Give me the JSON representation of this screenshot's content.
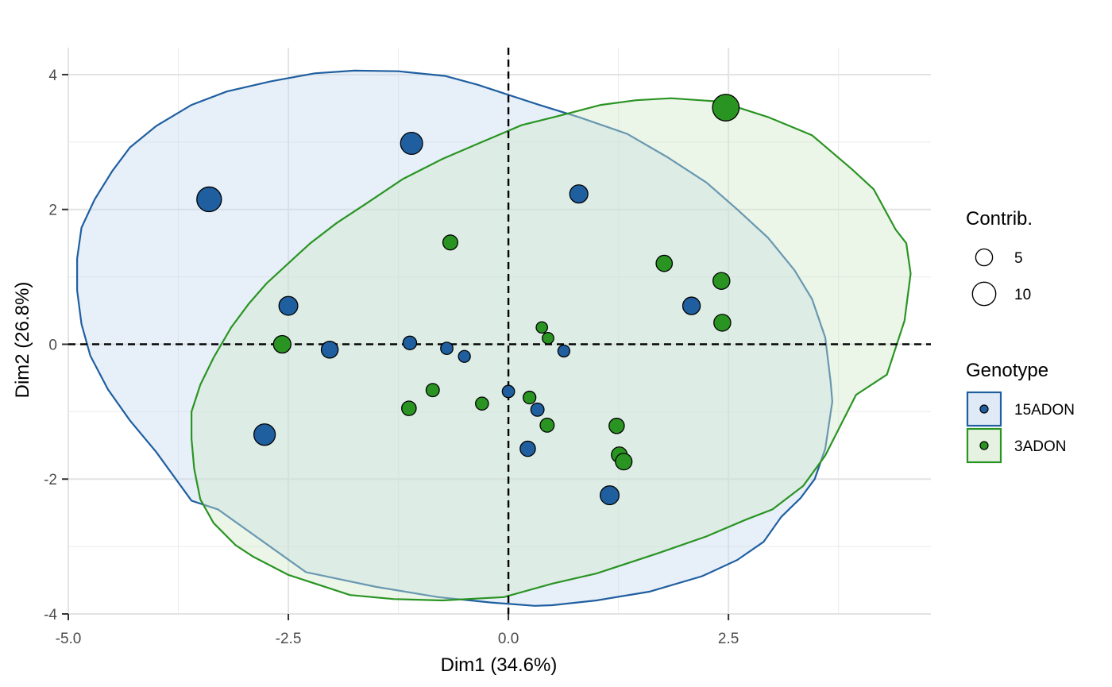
{
  "chart_data": {
    "type": "scatter",
    "title": "",
    "xlabel": "Dim1 (34.6%)",
    "ylabel": "Dim2 (26.8%)",
    "xlim": [
      -5.0,
      4.8
    ],
    "ylim": [
      -4.0,
      4.4
    ],
    "x_ticks": [
      -5.0,
      -2.5,
      0.0,
      2.5
    ],
    "x_tick_labels": [
      "-5.0",
      "-2.5",
      "0.0",
      "2.5"
    ],
    "y_ticks": [
      -4,
      -2,
      0,
      2,
      4
    ],
    "y_tick_labels": [
      "-4",
      "-2",
      "0",
      "2",
      "4"
    ],
    "grid": true,
    "reference_lines": {
      "x": 0,
      "y": 0,
      "style": "dashed"
    },
    "legend_position": "right",
    "size_legend": {
      "title": "Contrib.",
      "entries": [
        {
          "label": "5",
          "value": 5
        },
        {
          "label": "10",
          "value": 10
        }
      ]
    },
    "color_legend": {
      "title": "Genotype"
    },
    "series": [
      {
        "name": "15ADON",
        "color": "#1f5fa0",
        "fill": "#c6d8ee",
        "points": [
          {
            "x": -3.4,
            "y": 2.15,
            "contrib": 11.0
          },
          {
            "x": -1.1,
            "y": 2.98,
            "contrib": 9.0
          },
          {
            "x": 0.8,
            "y": 2.23,
            "contrib": 6.0
          },
          {
            "x": -2.5,
            "y": 0.57,
            "contrib": 6.5
          },
          {
            "x": -2.03,
            "y": -0.08,
            "contrib": 5.0
          },
          {
            "x": -1.12,
            "y": 0.02,
            "contrib": 2.5
          },
          {
            "x": -0.7,
            "y": -0.06,
            "contrib": 1.5
          },
          {
            "x": -0.5,
            "y": -0.18,
            "contrib": 1.2
          },
          {
            "x": 0.63,
            "y": -0.1,
            "contrib": 1.2
          },
          {
            "x": 0.0,
            "y": -0.7,
            "contrib": 1.5
          },
          {
            "x": 0.33,
            "y": -0.97,
            "contrib": 2.2
          },
          {
            "x": 0.22,
            "y": -1.55,
            "contrib": 3.8
          },
          {
            "x": 2.08,
            "y": 0.57,
            "contrib": 5.5
          },
          {
            "x": -2.77,
            "y": -1.34,
            "contrib": 8.5
          },
          {
            "x": 1.15,
            "y": -2.24,
            "contrib": 6.5
          }
        ],
        "ellipse": [
          [
            -4.9,
            1.27
          ],
          [
            -4.85,
            1.73
          ],
          [
            -4.7,
            2.15
          ],
          [
            -4.5,
            2.57
          ],
          [
            -4.3,
            2.92
          ],
          [
            -4.0,
            3.24
          ],
          [
            -3.6,
            3.55
          ],
          [
            -3.2,
            3.75
          ],
          [
            -2.7,
            3.9
          ],
          [
            -2.2,
            4.02
          ],
          [
            -1.75,
            4.06
          ],
          [
            -1.25,
            4.05
          ],
          [
            -0.72,
            3.98
          ],
          [
            -0.35,
            3.85
          ],
          [
            0.35,
            3.55
          ],
          [
            0.8,
            3.37
          ],
          [
            1.35,
            3.12
          ],
          [
            1.8,
            2.78
          ],
          [
            2.25,
            2.4
          ],
          [
            2.6,
            2.0
          ],
          [
            2.95,
            1.58
          ],
          [
            3.25,
            1.1
          ],
          [
            3.45,
            0.67
          ],
          [
            3.6,
            0.1
          ],
          [
            3.66,
            -0.55
          ],
          [
            3.68,
            -0.85
          ],
          [
            3.6,
            -1.55
          ],
          [
            3.48,
            -2.0
          ],
          [
            3.32,
            -2.28
          ],
          [
            3.1,
            -2.56
          ],
          [
            2.9,
            -2.93
          ],
          [
            2.6,
            -3.2
          ],
          [
            2.2,
            -3.44
          ],
          [
            1.6,
            -3.67
          ],
          [
            1.0,
            -3.8
          ],
          [
            0.5,
            -3.87
          ],
          [
            0.3,
            -3.88
          ],
          [
            -0.2,
            -3.83
          ],
          [
            -0.8,
            -3.75
          ],
          [
            -1.5,
            -3.6
          ],
          [
            -2.3,
            -3.38
          ],
          [
            -3.3,
            -2.45
          ],
          [
            -3.6,
            -2.32
          ],
          [
            -4.0,
            -1.6
          ],
          [
            -4.3,
            -1.13
          ],
          [
            -4.55,
            -0.67
          ],
          [
            -4.75,
            -0.17
          ],
          [
            -4.85,
            0.3
          ],
          [
            -4.9,
            0.8
          ]
        ]
      },
      {
        "name": "3ADON",
        "color": "#2a9423",
        "fill": "#cfe8c8",
        "points": [
          {
            "x": 2.47,
            "y": 3.51,
            "contrib": 12.5
          },
          {
            "x": -0.66,
            "y": 1.51,
            "contrib": 3.5
          },
          {
            "x": 1.77,
            "y": 1.2,
            "contrib": 4.5
          },
          {
            "x": 2.42,
            "y": 0.94,
            "contrib": 5.0
          },
          {
            "x": 2.43,
            "y": 0.32,
            "contrib": 5.0
          },
          {
            "x": -2.57,
            "y": 0.0,
            "contrib": 5.5
          },
          {
            "x": 0.38,
            "y": 0.25,
            "contrib": 0.8
          },
          {
            "x": 0.45,
            "y": 0.09,
            "contrib": 0.9
          },
          {
            "x": -0.86,
            "y": -0.68,
            "contrib": 2.2
          },
          {
            "x": -0.3,
            "y": -0.88,
            "contrib": 2.0
          },
          {
            "x": 0.24,
            "y": -0.79,
            "contrib": 1.8
          },
          {
            "x": 0.44,
            "y": -1.2,
            "contrib": 2.8
          },
          {
            "x": -1.13,
            "y": -0.95,
            "contrib": 3.2
          },
          {
            "x": 1.23,
            "y": -1.21,
            "contrib": 3.8
          },
          {
            "x": 1.26,
            "y": -1.64,
            "contrib": 4.2
          },
          {
            "x": 1.31,
            "y": -1.74,
            "contrib": 4.8
          }
        ],
        "ellipse": [
          [
            1.85,
            3.65
          ],
          [
            2.4,
            3.6
          ],
          [
            2.95,
            3.37
          ],
          [
            3.45,
            3.1
          ],
          [
            3.9,
            2.6
          ],
          [
            4.15,
            2.3
          ],
          [
            4.4,
            1.7
          ],
          [
            4.52,
            1.5
          ],
          [
            4.57,
            1.05
          ],
          [
            4.5,
            0.35
          ],
          [
            4.3,
            -0.45
          ],
          [
            3.95,
            -0.75
          ],
          [
            3.6,
            -1.65
          ],
          [
            3.35,
            -2.1
          ],
          [
            3.0,
            -2.45
          ],
          [
            2.7,
            -2.6
          ],
          [
            2.25,
            -2.85
          ],
          [
            1.7,
            -3.1
          ],
          [
            1.0,
            -3.4
          ],
          [
            0.5,
            -3.55
          ],
          [
            -0.05,
            -3.75
          ],
          [
            -0.75,
            -3.8
          ],
          [
            -1.3,
            -3.78
          ],
          [
            -1.8,
            -3.72
          ],
          [
            -2.5,
            -3.42
          ],
          [
            -2.9,
            -3.15
          ],
          [
            -3.1,
            -2.98
          ],
          [
            -3.35,
            -2.65
          ],
          [
            -3.5,
            -2.3
          ],
          [
            -3.57,
            -1.85
          ],
          [
            -3.6,
            -1.4
          ],
          [
            -3.6,
            -1.0
          ],
          [
            -3.5,
            -0.6
          ],
          [
            -3.35,
            -0.2
          ],
          [
            -3.15,
            0.25
          ],
          [
            -2.95,
            0.6
          ],
          [
            -2.75,
            0.9
          ],
          [
            -2.5,
            1.2
          ],
          [
            -2.25,
            1.5
          ],
          [
            -1.95,
            1.8
          ],
          [
            -1.6,
            2.1
          ],
          [
            -1.2,
            2.45
          ],
          [
            -0.75,
            2.75
          ],
          [
            -0.3,
            3.0
          ],
          [
            0.15,
            3.25
          ],
          [
            0.55,
            3.38
          ],
          [
            1.05,
            3.55
          ],
          [
            1.45,
            3.62
          ]
        ]
      }
    ]
  }
}
